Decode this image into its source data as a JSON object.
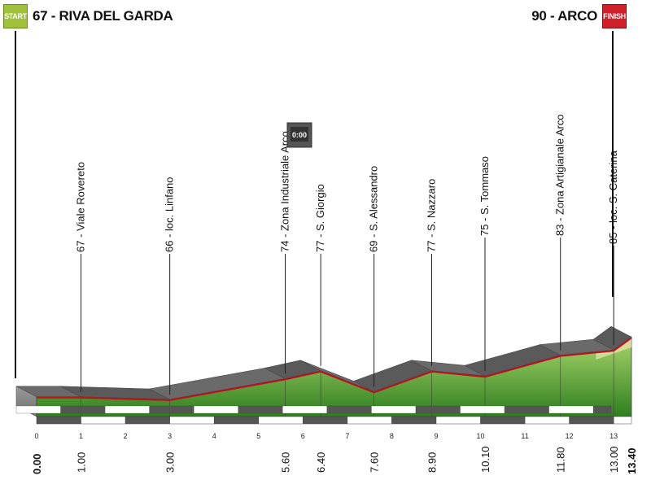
{
  "header": {
    "start_badge": "START",
    "start_text": "67 - RIVA DEL GARDA",
    "finish_text": "90 - ARCO",
    "finish_badge": "FINISH"
  },
  "colors": {
    "terrain_top": "#9acd5a",
    "terrain_bottom": "#2e7d1e",
    "finish_zone": "#f0d5a8",
    "road": "#c0101e",
    "side": "#8c8c8c",
    "band_dark": "#555555"
  },
  "chart_data": {
    "type": "area",
    "title": "",
    "xlabel": "",
    "ylabel": "",
    "x_unit": "km",
    "total_distance": 13.4,
    "elevation_profile": [
      {
        "km": 0.0,
        "alt": 67
      },
      {
        "km": 1.0,
        "alt": 67
      },
      {
        "km": 3.0,
        "alt": 66
      },
      {
        "km": 5.6,
        "alt": 74
      },
      {
        "km": 6.4,
        "alt": 77
      },
      {
        "km": 7.6,
        "alt": 69
      },
      {
        "km": 8.9,
        "alt": 77
      },
      {
        "km": 10.1,
        "alt": 75
      },
      {
        "km": 11.8,
        "alt": 83
      },
      {
        "km": 13.0,
        "alt": 85
      },
      {
        "km": 13.4,
        "alt": 90
      }
    ],
    "waypoints": [
      {
        "km": 1.0,
        "altitude": "67",
        "name": "Viale Rovereto",
        "km_label": "1.00"
      },
      {
        "km": 3.0,
        "altitude": "66",
        "name": "loc. Linfano",
        "km_label": "3.00"
      },
      {
        "km": 5.6,
        "altitude": "74",
        "name": "Zona Industriale Arco",
        "km_label": "5.60"
      },
      {
        "km": 6.4,
        "altitude": "77",
        "name": "S. Giorgio",
        "km_label": "6.40"
      },
      {
        "km": 7.6,
        "altitude": "69",
        "name": "S. Alessandro",
        "km_label": "7.60"
      },
      {
        "km": 8.9,
        "altitude": "77",
        "name": "S. Nazzaro",
        "km_label": "8.90"
      },
      {
        "km": 10.1,
        "altitude": "75",
        "name": "S. Tommaso",
        "km_label": "10.10"
      },
      {
        "km": 11.8,
        "altitude": "83",
        "name": "Zona Artigianale Arco",
        "km_label": "11.80"
      },
      {
        "km": 13.0,
        "altitude": "85",
        "name": "loc. S. Caterina",
        "km_label": "13.00"
      }
    ],
    "endpoint_labels": [
      "0.00",
      "13.40"
    ],
    "km_ticks": [
      "0",
      "1",
      "2",
      "3",
      "4",
      "5",
      "6",
      "7",
      "8",
      "9",
      "10",
      "11",
      "12",
      "13"
    ],
    "intermediate_time_check": {
      "km": 6.4,
      "label": "0:00"
    }
  }
}
